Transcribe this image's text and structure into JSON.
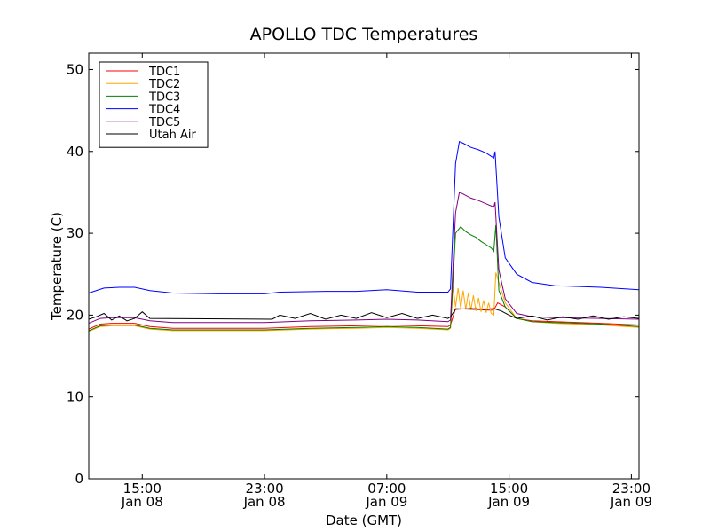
{
  "chart_data": {
    "type": "line",
    "title": "APOLLO TDC Temperatures",
    "xlabel": "Date (GMT)",
    "ylabel": "Temperature (C)",
    "ylim": [
      0,
      52
    ],
    "xlim": [
      "2012-01-08 11:30",
      "2012-01-09 23:30"
    ],
    "yticks": [
      0,
      10,
      20,
      30,
      40,
      50
    ],
    "xticks": [
      {
        "value": "2012-01-08 15:00",
        "time": "15:00",
        "date": "Jan 08"
      },
      {
        "value": "2012-01-08 23:00",
        "time": "23:00",
        "date": "Jan 08"
      },
      {
        "value": "2012-01-09 07:00",
        "time": "07:00",
        "date": "Jan 09"
      },
      {
        "value": "2012-01-09 15:00",
        "time": "15:00",
        "date": "Jan 09"
      },
      {
        "value": "2012-01-09 23:00",
        "time": "23:00",
        "date": "Jan 09"
      }
    ],
    "grid": false,
    "legend_position": "top-left",
    "series": [
      {
        "name": "TDC1",
        "color": "#ff0000",
        "x": [
          "2012-01-08 11:30",
          "2012-01-08 12:15",
          "2012-01-08 13:00",
          "2012-01-08 14:30",
          "2012-01-08 15:30",
          "2012-01-08 17:00",
          "2012-01-08 19:00",
          "2012-01-08 23:00",
          "2012-01-09 02:00",
          "2012-01-09 05:00",
          "2012-01-09 07:00",
          "2012-01-09 09:00",
          "2012-01-09 11:00",
          "2012-01-09 11:10",
          "2012-01-09 11:30",
          "2012-01-09 12:30",
          "2012-01-09 13:40",
          "2012-01-09 14:00",
          "2012-01-09 14:15",
          "2012-01-09 14:45",
          "2012-01-09 15:30",
          "2012-01-09 16:30",
          "2012-01-09 18:00",
          "2012-01-09 21:00",
          "2012-01-09 23:30"
        ],
        "y": [
          18.3,
          18.9,
          19.0,
          19.0,
          18.6,
          18.4,
          18.4,
          18.4,
          18.6,
          18.7,
          18.8,
          18.7,
          18.6,
          18.8,
          20.8,
          20.7,
          20.6,
          20.6,
          21.5,
          21.0,
          19.6,
          19.3,
          19.2,
          19.0,
          18.8
        ]
      },
      {
        "name": "TDC2",
        "color": "#ffa500",
        "x": [
          "2012-01-08 11:30",
          "2012-01-08 12:15",
          "2012-01-08 13:00",
          "2012-01-08 14:30",
          "2012-01-08 15:30",
          "2012-01-08 17:00",
          "2012-01-08 19:00",
          "2012-01-08 23:00",
          "2012-01-09 02:00",
          "2012-01-09 05:00",
          "2012-01-09 07:00",
          "2012-01-09 09:00",
          "2012-01-09 11:00",
          "2012-01-09 11:10",
          "2012-01-09 11:20",
          "2012-01-09 11:30",
          "2012-01-09 11:40",
          "2012-01-09 11:50",
          "2012-01-09 12:00",
          "2012-01-09 12:10",
          "2012-01-09 12:20",
          "2012-01-09 12:30",
          "2012-01-09 12:40",
          "2012-01-09 12:50",
          "2012-01-09 13:00",
          "2012-01-09 13:10",
          "2012-01-09 13:20",
          "2012-01-09 13:30",
          "2012-01-09 13:40",
          "2012-01-09 13:50",
          "2012-01-09 14:00",
          "2012-01-09 14:08",
          "2012-01-09 14:20",
          "2012-01-09 14:45",
          "2012-01-09 15:30",
          "2012-01-09 16:30",
          "2012-01-09 18:00",
          "2012-01-09 21:00",
          "2012-01-09 23:30"
        ],
        "y": [
          18.0,
          18.6,
          18.7,
          18.7,
          18.3,
          18.1,
          18.1,
          18.1,
          18.3,
          18.4,
          18.5,
          18.4,
          18.2,
          18.4,
          23.5,
          21.0,
          23.3,
          20.8,
          23.0,
          20.7,
          22.7,
          20.6,
          22.4,
          20.5,
          22.1,
          20.4,
          21.8,
          20.3,
          21.5,
          20.2,
          20.0,
          25.2,
          24.0,
          21.5,
          19.6,
          19.2,
          19.0,
          18.8,
          18.5
        ]
      },
      {
        "name": "TDC3",
        "color": "#008000",
        "x": [
          "2012-01-08 11:30",
          "2012-01-08 12:15",
          "2012-01-08 13:00",
          "2012-01-08 14:30",
          "2012-01-08 15:30",
          "2012-01-08 17:00",
          "2012-01-08 19:00",
          "2012-01-08 23:00",
          "2012-01-09 02:00",
          "2012-01-09 05:00",
          "2012-01-09 07:00",
          "2012-01-09 09:00",
          "2012-01-09 11:00",
          "2012-01-09 11:10",
          "2012-01-09 11:30",
          "2012-01-09 11:50",
          "2012-01-09 12:10",
          "2012-01-09 12:30",
          "2012-01-09 12:50",
          "2012-01-09 13:10",
          "2012-01-09 13:30",
          "2012-01-09 13:50",
          "2012-01-09 14:00",
          "2012-01-09 14:08",
          "2012-01-09 14:20",
          "2012-01-09 14:45",
          "2012-01-09 15:30",
          "2012-01-09 16:30",
          "2012-01-09 18:00",
          "2012-01-09 21:00",
          "2012-01-09 23:30"
        ],
        "y": [
          18.1,
          18.7,
          18.8,
          18.8,
          18.4,
          18.2,
          18.2,
          18.2,
          18.4,
          18.5,
          18.6,
          18.5,
          18.3,
          18.5,
          30.0,
          30.8,
          30.2,
          29.8,
          29.5,
          29.0,
          28.6,
          28.2,
          27.8,
          31.0,
          23.0,
          21.0,
          19.6,
          19.2,
          19.1,
          18.9,
          18.6
        ]
      },
      {
        "name": "TDC4",
        "color": "#0000ff",
        "x": [
          "2012-01-08 11:30",
          "2012-01-08 12:30",
          "2012-01-08 13:30",
          "2012-01-08 14:30",
          "2012-01-08 15:30",
          "2012-01-08 17:00",
          "2012-01-08 20:00",
          "2012-01-08 23:00",
          "2012-01-09 00:00",
          "2012-01-09 03:00",
          "2012-01-09 05:00",
          "2012-01-09 07:00",
          "2012-01-09 09:00",
          "2012-01-09 11:00",
          "2012-01-09 11:10",
          "2012-01-09 11:30",
          "2012-01-09 11:45",
          "2012-01-09 12:00",
          "2012-01-09 12:30",
          "2012-01-09 13:00",
          "2012-01-09 13:30",
          "2012-01-09 14:00",
          "2012-01-09 14:05",
          "2012-01-09 14:20",
          "2012-01-09 14:45",
          "2012-01-09 15:30",
          "2012-01-09 16:30",
          "2012-01-09 18:00",
          "2012-01-09 21:00",
          "2012-01-09 23:30"
        ],
        "y": [
          22.7,
          23.3,
          23.4,
          23.4,
          23.0,
          22.7,
          22.6,
          22.6,
          22.8,
          22.9,
          22.9,
          23.1,
          22.8,
          22.8,
          23.2,
          38.5,
          41.2,
          41.0,
          40.5,
          40.2,
          39.8,
          39.2,
          40.0,
          32.0,
          27.0,
          25.0,
          24.0,
          23.6,
          23.4,
          23.1
        ]
      },
      {
        "name": "TDC5",
        "color": "#800080",
        "x": [
          "2012-01-08 11:30",
          "2012-01-08 12:15",
          "2012-01-08 13:00",
          "2012-01-08 14:30",
          "2012-01-08 15:30",
          "2012-01-08 17:00",
          "2012-01-08 19:00",
          "2012-01-08 23:00",
          "2012-01-09 02:00",
          "2012-01-09 05:00",
          "2012-01-09 07:00",
          "2012-01-09 09:00",
          "2012-01-09 11:00",
          "2012-01-09 11:10",
          "2012-01-09 11:30",
          "2012-01-09 11:45",
          "2012-01-09 12:00",
          "2012-01-09 12:30",
          "2012-01-09 13:00",
          "2012-01-09 13:30",
          "2012-01-09 14:00",
          "2012-01-09 14:05",
          "2012-01-09 14:20",
          "2012-01-09 14:45",
          "2012-01-09 15:30",
          "2012-01-09 16:30",
          "2012-01-09 18:00",
          "2012-01-09 21:00",
          "2012-01-09 23:30"
        ],
        "y": [
          19.0,
          19.6,
          19.7,
          19.7,
          19.3,
          19.1,
          19.1,
          19.1,
          19.3,
          19.4,
          19.5,
          19.4,
          19.2,
          19.4,
          32.5,
          35.0,
          34.8,
          34.3,
          34.0,
          33.6,
          33.2,
          33.8,
          25.5,
          22.0,
          20.2,
          19.8,
          19.7,
          19.6,
          19.5
        ]
      },
      {
        "name": "Utah Air",
        "color": "#000000",
        "x": [
          "2012-01-08 11:30",
          "2012-01-08 12:00",
          "2012-01-08 12:30",
          "2012-01-08 13:00",
          "2012-01-08 13:30",
          "2012-01-08 14:00",
          "2012-01-08 14:30",
          "2012-01-08 15:00",
          "2012-01-08 15:30",
          "2012-01-08 23:30",
          "2012-01-09 00:00",
          "2012-01-09 01:00",
          "2012-01-09 02:00",
          "2012-01-09 03:00",
          "2012-01-09 04:00",
          "2012-01-09 05:00",
          "2012-01-09 06:00",
          "2012-01-09 07:00",
          "2012-01-09 08:00",
          "2012-01-09 09:00",
          "2012-01-09 10:00",
          "2012-01-09 11:00",
          "2012-01-09 11:10",
          "2012-01-09 11:30",
          "2012-01-09 12:30",
          "2012-01-09 13:30",
          "2012-01-09 14:00",
          "2012-01-09 14:30",
          "2012-01-09 15:00",
          "2012-01-09 15:30",
          "2012-01-09 16:30",
          "2012-01-09 17:30",
          "2012-01-09 18:30",
          "2012-01-09 19:30",
          "2012-01-09 20:30",
          "2012-01-09 21:30",
          "2012-01-09 22:30",
          "2012-01-09 23:30"
        ],
        "y": [
          19.5,
          19.8,
          20.2,
          19.4,
          19.9,
          19.3,
          19.6,
          20.4,
          19.6,
          19.5,
          20.0,
          19.6,
          20.2,
          19.5,
          20.0,
          19.6,
          20.3,
          19.7,
          20.2,
          19.6,
          20.0,
          19.6,
          19.8,
          20.7,
          20.8,
          20.7,
          20.8,
          20.5,
          20.0,
          19.6,
          19.9,
          19.4,
          19.8,
          19.5,
          19.9,
          19.5,
          19.8,
          19.6
        ]
      }
    ]
  }
}
